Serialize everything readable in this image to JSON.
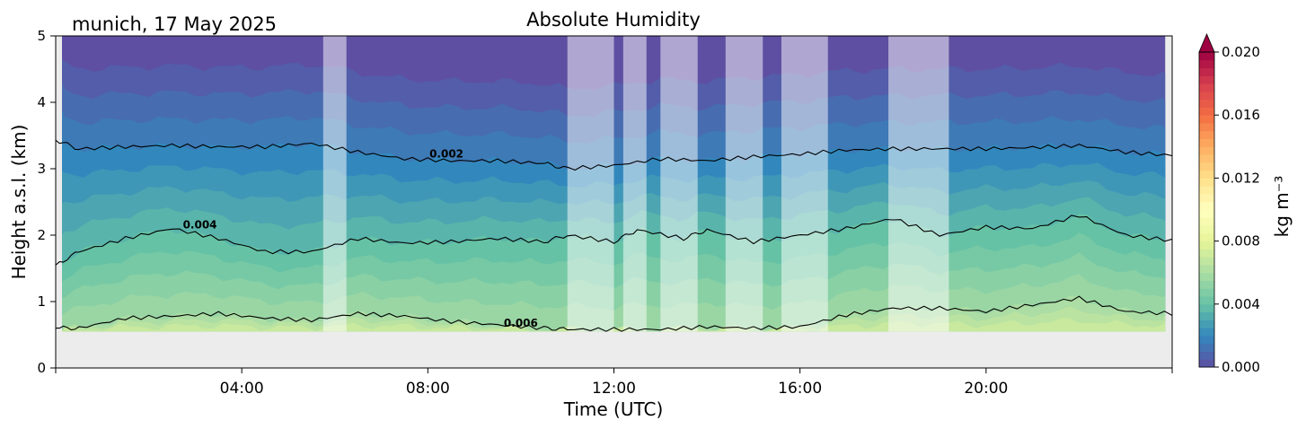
{
  "chart_data": {
    "type": "heatmap",
    "title": "Absolute Humidity",
    "subtitle": "munich, 17 May 2025",
    "xlabel": "Time (UTC)",
    "ylabel": "Height a.s.l. (km)",
    "xlim_hours": [
      0,
      24
    ],
    "ylim": [
      0,
      5
    ],
    "x_ticks": [
      {
        "value": 4,
        "label": "04:00"
      },
      {
        "value": 8,
        "label": "08:00"
      },
      {
        "value": 12,
        "label": "12:00"
      },
      {
        "value": 16,
        "label": "16:00"
      },
      {
        "value": 20,
        "label": "20:00"
      }
    ],
    "y_ticks": [
      {
        "value": 0,
        "label": "0"
      },
      {
        "value": 1,
        "label": "1"
      },
      {
        "value": 2,
        "label": "2"
      },
      {
        "value": 3,
        "label": "3"
      },
      {
        "value": 4,
        "label": "4"
      },
      {
        "value": 5,
        "label": "5"
      }
    ],
    "data_bottom_km": 0.55,
    "grid": false,
    "colormap": "Spectral_r",
    "colorbar": {
      "label": "kg m⁻³",
      "range": [
        0.0,
        0.02
      ],
      "extend": "max",
      "ticks": [
        {
          "value": 0.0,
          "label": "0.000"
        },
        {
          "value": 0.004,
          "label": "0.004"
        },
        {
          "value": 0.008,
          "label": "0.008"
        },
        {
          "value": 0.012,
          "label": "0.012"
        },
        {
          "value": 0.016,
          "label": "0.016"
        },
        {
          "value": 0.02,
          "label": "0.020"
        }
      ]
    },
    "contours": [
      {
        "level": 0.002,
        "label": "0.002",
        "label_at": {
          "x": 8.4,
          "y": 3.17
        },
        "points": [
          [
            0,
            3.43
          ],
          [
            0.5,
            3.3
          ],
          [
            1.5,
            3.33
          ],
          [
            2.5,
            3.35
          ],
          [
            3.5,
            3.33
          ],
          [
            4.5,
            3.33
          ],
          [
            5.5,
            3.38
          ],
          [
            6.5,
            3.25
          ],
          [
            7.5,
            3.15
          ],
          [
            8.5,
            3.12
          ],
          [
            9.5,
            3.12
          ],
          [
            10.5,
            3.08
          ],
          [
            11,
            3.0
          ],
          [
            12,
            3.05
          ],
          [
            13,
            3.15
          ],
          [
            14,
            3.12
          ],
          [
            15,
            3.18
          ],
          [
            16,
            3.22
          ],
          [
            17,
            3.28
          ],
          [
            18,
            3.3
          ],
          [
            19,
            3.3
          ],
          [
            20,
            3.3
          ],
          [
            21,
            3.32
          ],
          [
            22,
            3.35
          ],
          [
            23,
            3.25
          ],
          [
            24,
            3.2
          ]
        ]
      },
      {
        "level": 0.004,
        "label": "0.004",
        "label_at": {
          "x": 3.1,
          "y": 2.1
        },
        "points": [
          [
            0,
            1.55
          ],
          [
            0.5,
            1.75
          ],
          [
            1.5,
            1.95
          ],
          [
            2.5,
            2.1
          ],
          [
            3.5,
            1.95
          ],
          [
            4.5,
            1.75
          ],
          [
            5.5,
            1.75
          ],
          [
            6.5,
            1.95
          ],
          [
            7.5,
            1.88
          ],
          [
            8.5,
            1.9
          ],
          [
            9.5,
            1.95
          ],
          [
            10.5,
            1.9
          ],
          [
            11,
            2.0
          ],
          [
            12,
            1.9
          ],
          [
            12.5,
            2.08
          ],
          [
            13.5,
            1.95
          ],
          [
            14,
            2.08
          ],
          [
            15,
            1.9
          ],
          [
            16,
            2.0
          ],
          [
            17,
            2.1
          ],
          [
            18,
            2.25
          ],
          [
            19,
            2.0
          ],
          [
            20,
            2.12
          ],
          [
            21,
            2.1
          ],
          [
            22,
            2.3
          ],
          [
            23,
            2.0
          ],
          [
            24,
            1.92
          ]
        ]
      },
      {
        "level": 0.006,
        "label": "0.006",
        "label_at": {
          "x": 10.0,
          "y": 0.62
        },
        "points": [
          [
            0,
            0.6
          ],
          [
            0.5,
            0.6
          ],
          [
            1.5,
            0.75
          ],
          [
            2.5,
            0.78
          ],
          [
            3.5,
            0.82
          ],
          [
            4.5,
            0.75
          ],
          [
            5.5,
            0.72
          ],
          [
            6.5,
            0.82
          ],
          [
            7.5,
            0.78
          ],
          [
            8.5,
            0.7
          ],
          [
            9.5,
            0.65
          ],
          [
            10.5,
            0.6
          ],
          [
            11,
            0.58
          ],
          [
            12,
            0.58
          ],
          [
            13,
            0.58
          ],
          [
            14,
            0.62
          ],
          [
            15,
            0.6
          ],
          [
            16,
            0.62
          ],
          [
            17,
            0.8
          ],
          [
            18,
            0.9
          ],
          [
            19,
            0.9
          ],
          [
            20,
            0.85
          ],
          [
            21,
            0.95
          ],
          [
            22,
            1.05
          ],
          [
            23,
            0.85
          ],
          [
            24,
            0.82
          ]
        ]
      }
    ],
    "masked_periods_hours": [
      [
        5.75,
        6.25
      ],
      [
        11.0,
        12.0
      ],
      [
        12.2,
        12.7
      ],
      [
        13.0,
        13.8
      ],
      [
        14.4,
        15.2
      ],
      [
        15.6,
        16.6
      ],
      [
        17.9,
        19.2
      ]
    ]
  }
}
